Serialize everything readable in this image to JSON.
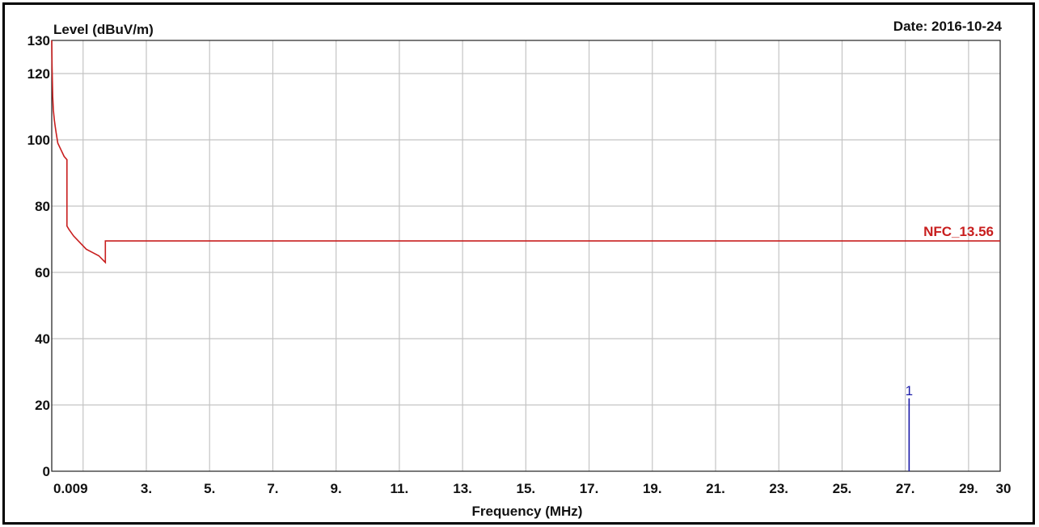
{
  "chart_data": {
    "type": "line",
    "ylabel": "Level (dBuV/m)",
    "xlabel": "Frequency (MHz)",
    "date_label": "Date: 2016-10-24",
    "xlim": [
      0.009,
      30
    ],
    "ylim": [
      0,
      130
    ],
    "x_ticks": [
      {
        "value": 0.009,
        "label": "0.009"
      },
      {
        "value": 3,
        "label": "3."
      },
      {
        "value": 5,
        "label": "5."
      },
      {
        "value": 7,
        "label": "7."
      },
      {
        "value": 9,
        "label": "9."
      },
      {
        "value": 11,
        "label": "11."
      },
      {
        "value": 13,
        "label": "13."
      },
      {
        "value": 15,
        "label": "15."
      },
      {
        "value": 17,
        "label": "17."
      },
      {
        "value": 19,
        "label": "19."
      },
      {
        "value": 21,
        "label": "21."
      },
      {
        "value": 23,
        "label": "23."
      },
      {
        "value": 25,
        "label": "25."
      },
      {
        "value": 27,
        "label": "27."
      },
      {
        "value": 29,
        "label": "29."
      },
      {
        "value": 30,
        "label": "30"
      }
    ],
    "x_grid": [
      0.009,
      1,
      3,
      5,
      7,
      9,
      11,
      13,
      15,
      17,
      19,
      21,
      23,
      25,
      27,
      29
    ],
    "y_ticks": [
      {
        "value": 0,
        "label": "0"
      },
      {
        "value": 20,
        "label": "20"
      },
      {
        "value": 40,
        "label": "40"
      },
      {
        "value": 60,
        "label": "60"
      },
      {
        "value": 80,
        "label": "80"
      },
      {
        "value": 100,
        "label": "100"
      },
      {
        "value": 120,
        "label": "120"
      },
      {
        "value": 130,
        "label": "130"
      }
    ],
    "y_grid": [
      20,
      40,
      60,
      80,
      100,
      120
    ],
    "grid": true,
    "series": [
      {
        "name": "NFC_13.56",
        "color": "#c81e1e",
        "x": [
          0.009,
          0.02,
          0.04,
          0.06,
          0.09,
          0.12,
          0.15,
          0.2,
          0.3,
          0.4,
          0.49,
          0.49,
          0.55,
          0.7,
          0.9,
          1.1,
          1.3,
          1.5,
          1.705,
          1.705,
          30
        ],
        "y": [
          130,
          122,
          113,
          109,
          106,
          104,
          102,
          99,
          97,
          95,
          94,
          74,
          73,
          71,
          69,
          67,
          66,
          65,
          63,
          69.5,
          69.5
        ]
      }
    ],
    "markers": [
      {
        "label": "1",
        "x": 27.12,
        "y": 22,
        "color": "#1a1aa8"
      }
    ]
  }
}
